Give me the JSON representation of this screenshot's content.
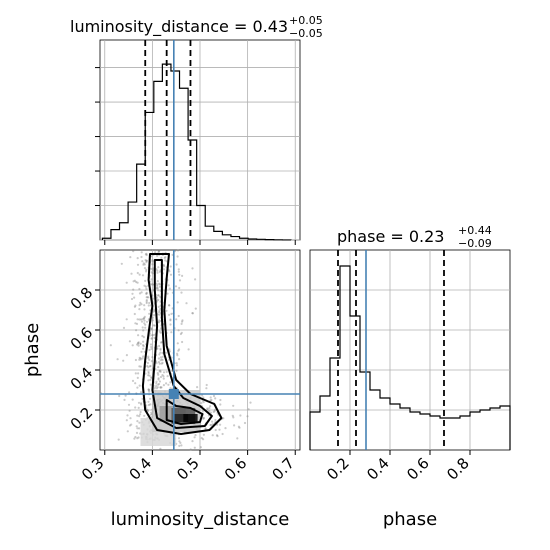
{
  "chart_data": {
    "type": "corner",
    "parameters": [
      "luminosity_distance",
      "phase"
    ],
    "truths": {
      "luminosity_distance": 0.445,
      "phase": 0.28
    },
    "colors": {
      "truth": "#4682b4",
      "hist": "#000000",
      "grid": "#b0b0b0",
      "samples": "#8c8c8c"
    },
    "grid": true,
    "panels": [
      {
        "name": "luminosity_distance-marginal",
        "type": "histogram",
        "title": {
          "main": "luminosity_distance = 0.43",
          "sup": "+0.05",
          "sub": "−0.05"
        },
        "bin_edges": [
          0.295,
          0.313,
          0.331,
          0.349,
          0.367,
          0.385,
          0.403,
          0.421,
          0.439,
          0.457,
          0.475,
          0.493,
          0.511,
          0.529,
          0.547,
          0.565,
          0.583,
          0.601,
          0.619,
          0.637,
          0.655,
          0.673,
          0.691
        ],
        "counts": [
          0.5,
          3,
          5,
          11,
          22,
          37,
          46,
          51,
          49,
          44,
          29,
          10,
          4,
          2.5,
          1.5,
          1,
          0.5,
          0.3,
          0.2,
          0.1,
          0.05,
          0.02
        ],
        "ylim": [
          0,
          58
        ],
        "quantiles": [
          0.385,
          0.43,
          0.48
        ],
        "truth": 0.445,
        "xlim": [
          0.29,
          0.71
        ]
      },
      {
        "name": "phase-marginal",
        "type": "histogram",
        "title": {
          "main": "phase = 0.23",
          "sup": "+0.44",
          "sub": "−0.09"
        },
        "bin_edges": [
          0.0,
          0.05,
          0.1,
          0.15,
          0.2,
          0.25,
          0.3,
          0.35,
          0.4,
          0.45,
          0.5,
          0.55,
          0.6,
          0.65,
          0.7,
          0.75,
          0.8,
          0.85,
          0.9,
          0.95,
          1.0
        ],
        "counts": [
          19,
          27,
          46,
          92,
          67,
          39,
          30,
          26,
          23,
          21,
          19,
          18,
          17,
          16,
          16,
          17,
          19,
          20,
          21,
          22
        ],
        "ylim": [
          0,
          100
        ],
        "quantiles": [
          0.14,
          0.23,
          0.67
        ],
        "truth": 0.28,
        "xlim": [
          0.0,
          1.0
        ]
      },
      {
        "name": "2d-density",
        "type": "scatter+contour",
        "xlim": [
          0.29,
          0.71
        ],
        "ylim": [
          0.0,
          1.0
        ],
        "truth": [
          0.445,
          0.28
        ]
      }
    ],
    "axes": {
      "luminosity_distance": {
        "ticks": [
          0.3,
          0.4,
          0.5,
          0.6,
          0.7
        ],
        "tick_labels": [
          "0.3",
          "0.4",
          "0.5",
          "0.6",
          "0.7"
        ]
      },
      "phase": {
        "ticks": [
          0.2,
          0.4,
          0.6,
          0.8
        ],
        "tick_labels": [
          "0.2",
          "0.4",
          "0.6",
          "0.8"
        ]
      }
    },
    "xlabels": [
      "luminosity_distance",
      "phase"
    ],
    "ylabel": "phase"
  }
}
